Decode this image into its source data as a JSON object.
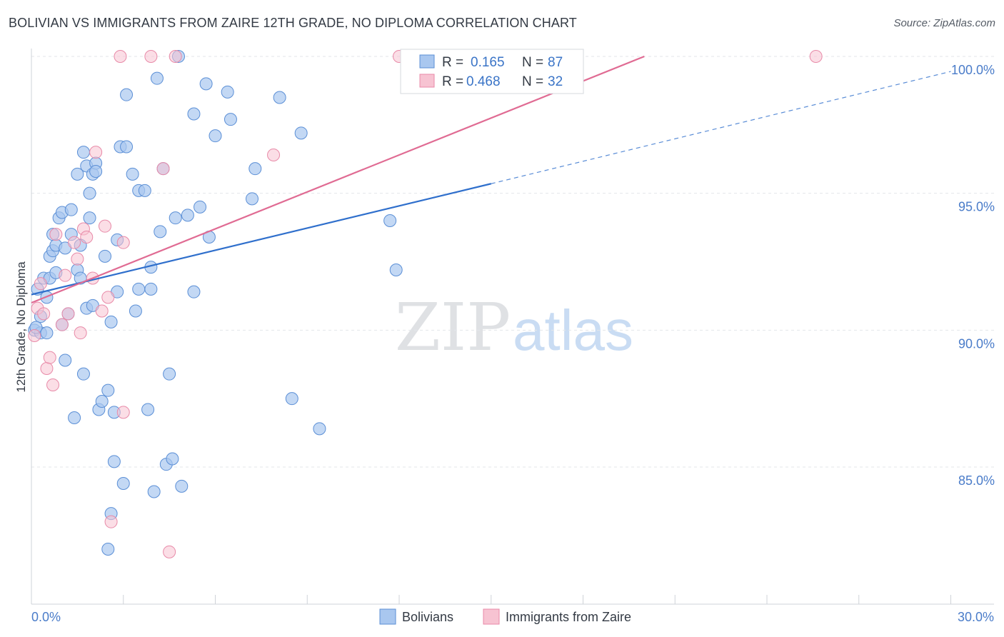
{
  "header": {
    "title": "BOLIVIAN VS IMMIGRANTS FROM ZAIRE 12TH GRADE, NO DIPLOMA CORRELATION CHART",
    "source": "Source: ZipAtlas.com"
  },
  "watermark": {
    "zip": "ZIP",
    "atlas": "atlas"
  },
  "legend": {
    "rows": [
      {
        "r_label": "R =",
        "r_value": "0.165",
        "n_label": "N =",
        "n_value": "87"
      },
      {
        "r_label": "R =",
        "r_value": "0.468",
        "n_label": "N =",
        "n_value": "32"
      }
    ]
  },
  "bottom_legend": {
    "series1": "Bolivians",
    "series2": "Immigrants from Zaire"
  },
  "colors": {
    "blue_fill": "#a9c7ef",
    "blue_stroke": "#5b8fd6",
    "blue_line": "#2f6fcc",
    "pink_fill": "#f7c3d2",
    "pink_stroke": "#e88aa8",
    "pink_line": "#e06b93",
    "grid": "#e3e6ea",
    "tick_text": "#4a7cc9"
  },
  "chart_data": {
    "type": "scatter",
    "title": "BOLIVIAN VS IMMIGRANTS FROM ZAIRE 12TH GRADE, NO DIPLOMA CORRELATION CHART",
    "xlabel": "",
    "ylabel": "12th Grade, No Diploma",
    "xlim": [
      0,
      30
    ],
    "ylim": [
      80.2,
      100.8
    ],
    "x_tick_labels": [
      "0.0%",
      "30.0%"
    ],
    "y_ticks": [
      85,
      90,
      95,
      100
    ],
    "y_tick_labels": [
      "85.0%",
      "90.0%",
      "95.0%",
      "100.0%"
    ],
    "grid": true,
    "legend_position": "top-center",
    "series": [
      {
        "name": "Bolivians",
        "r": 0.165,
        "n": 87,
        "points": [
          [
            0.1,
            90.0
          ],
          [
            0.2,
            91.5
          ],
          [
            0.3,
            90.5
          ],
          [
            0.3,
            89.9
          ],
          [
            0.4,
            91.9
          ],
          [
            0.5,
            91.2
          ],
          [
            0.5,
            89.9
          ],
          [
            0.6,
            92.7
          ],
          [
            0.6,
            91.9
          ],
          [
            0.7,
            92.9
          ],
          [
            0.7,
            93.5
          ],
          [
            0.8,
            92.1
          ],
          [
            0.8,
            93.1
          ],
          [
            0.9,
            94.1
          ],
          [
            1.0,
            90.2
          ],
          [
            1.0,
            94.3
          ],
          [
            1.1,
            88.9
          ],
          [
            1.1,
            93.0
          ],
          [
            1.2,
            90.6
          ],
          [
            1.3,
            93.5
          ],
          [
            1.3,
            94.4
          ],
          [
            1.4,
            86.8
          ],
          [
            1.5,
            95.7
          ],
          [
            1.5,
            92.2
          ],
          [
            1.6,
            91.9
          ],
          [
            1.6,
            93.1
          ],
          [
            1.7,
            88.4
          ],
          [
            1.7,
            96.5
          ],
          [
            1.8,
            90.8
          ],
          [
            1.8,
            96.0
          ],
          [
            1.9,
            94.1
          ],
          [
            1.9,
            95.0
          ],
          [
            2.0,
            90.9
          ],
          [
            2.0,
            95.7
          ],
          [
            2.1,
            96.1
          ],
          [
            2.1,
            95.8
          ],
          [
            2.2,
            87.1
          ],
          [
            2.3,
            87.4
          ],
          [
            2.4,
            92.7
          ],
          [
            2.5,
            82.0
          ],
          [
            2.5,
            87.8
          ],
          [
            2.6,
            90.3
          ],
          [
            2.6,
            83.3
          ],
          [
            2.7,
            85.2
          ],
          [
            2.7,
            87.0
          ],
          [
            2.8,
            91.4
          ],
          [
            2.8,
            93.3
          ],
          [
            2.9,
            96.7
          ],
          [
            3.0,
            84.4
          ],
          [
            3.1,
            96.7
          ],
          [
            3.1,
            98.6
          ],
          [
            3.3,
            95.7
          ],
          [
            3.4,
            90.7
          ],
          [
            3.5,
            95.1
          ],
          [
            3.5,
            91.5
          ],
          [
            3.7,
            95.1
          ],
          [
            3.8,
            87.1
          ],
          [
            3.9,
            91.5
          ],
          [
            3.9,
            92.3
          ],
          [
            4.0,
            84.1
          ],
          [
            4.1,
            99.2
          ],
          [
            4.2,
            93.6
          ],
          [
            4.3,
            95.9
          ],
          [
            4.4,
            85.1
          ],
          [
            4.5,
            88.4
          ],
          [
            4.6,
            85.3
          ],
          [
            4.7,
            94.1
          ],
          [
            4.8,
            100.0
          ],
          [
            4.9,
            84.3
          ],
          [
            5.1,
            94.2
          ],
          [
            5.3,
            97.9
          ],
          [
            5.3,
            91.4
          ],
          [
            5.5,
            94.5
          ],
          [
            5.7,
            99.0
          ],
          [
            5.8,
            93.4
          ],
          [
            6.0,
            97.1
          ],
          [
            6.4,
            98.7
          ],
          [
            6.5,
            97.7
          ],
          [
            7.2,
            94.8
          ],
          [
            7.3,
            95.9
          ],
          [
            8.1,
            98.5
          ],
          [
            8.5,
            87.5
          ],
          [
            8.8,
            97.2
          ],
          [
            9.4,
            86.4
          ],
          [
            11.7,
            94.0
          ],
          [
            11.9,
            92.2
          ],
          [
            0.15,
            90.1
          ]
        ]
      },
      {
        "name": "Immigrants from Zaire",
        "r": 0.468,
        "n": 32,
        "points": [
          [
            0.1,
            89.8
          ],
          [
            0.2,
            90.8
          ],
          [
            0.3,
            91.7
          ],
          [
            0.4,
            90.6
          ],
          [
            0.5,
            88.6
          ],
          [
            0.6,
            89.0
          ],
          [
            0.7,
            88.0
          ],
          [
            0.8,
            93.5
          ],
          [
            1.0,
            90.2
          ],
          [
            1.1,
            92.0
          ],
          [
            1.2,
            90.6
          ],
          [
            1.4,
            93.2
          ],
          [
            1.5,
            92.6
          ],
          [
            1.6,
            89.9
          ],
          [
            1.7,
            93.7
          ],
          [
            1.8,
            93.4
          ],
          [
            2.0,
            91.9
          ],
          [
            2.1,
            96.5
          ],
          [
            2.3,
            90.7
          ],
          [
            2.4,
            93.8
          ],
          [
            2.5,
            91.2
          ],
          [
            2.6,
            83.0
          ],
          [
            2.9,
            100.0
          ],
          [
            3.0,
            93.2
          ],
          [
            3.0,
            87.0
          ],
          [
            3.9,
            100.0
          ],
          [
            4.3,
            95.9
          ],
          [
            4.5,
            81.9
          ],
          [
            4.7,
            100.0
          ],
          [
            7.9,
            96.4
          ],
          [
            12.0,
            100.0
          ],
          [
            25.6,
            100.0
          ]
        ]
      }
    ],
    "trendlines": [
      {
        "series": "Bolivians",
        "from": [
          0,
          91.3
        ],
        "solid_to": [
          15,
          95.35
        ],
        "dashed_to": [
          30,
          99.45
        ]
      },
      {
        "series": "Immigrants from Zaire",
        "from": [
          0,
          91.0
        ],
        "to": [
          20,
          100.0
        ]
      }
    ]
  }
}
